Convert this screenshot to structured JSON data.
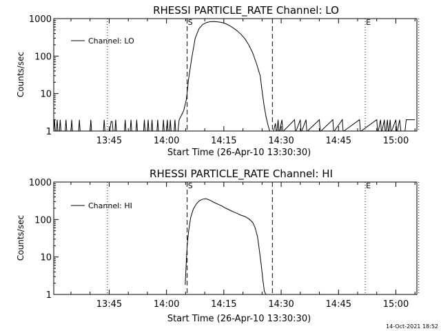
{
  "footer_timestamp": "14-Oct-2021 18:52",
  "chart_data": [
    {
      "type": "line",
      "title": "RHESSI PARTICLE_RATE Channel: LO",
      "xlabel": "Start Time (26-Apr-10 13:30:30)",
      "ylabel": "Counts/sec",
      "yscale": "log",
      "ylim": [
        1,
        1000
      ],
      "y_ticks": [
        1,
        10,
        100,
        1000
      ],
      "y_tick_labels": [
        "1",
        "10",
        "100",
        "1000"
      ],
      "xlim_min": [
        0.5,
        95.5
      ],
      "x_ticks_min": [
        15,
        30,
        45,
        60,
        75,
        90
      ],
      "x_tick_labels": [
        "13:45",
        "14:00",
        "14:15",
        "14:30",
        "14:45",
        "15:00"
      ],
      "legend": "Channel: LO",
      "markers": [
        {
          "label": "S",
          "x_min": 35.4,
          "style": "dashed"
        },
        {
          "label": "",
          "x_min": 57.7,
          "style": "dashed"
        },
        {
          "label": "",
          "x_min": 14.5,
          "style": "dotted"
        },
        {
          "label": "E",
          "x_min": 82.0,
          "style": "dotted"
        },
        {
          "label": "",
          "x_min": 96.0,
          "style": "dotted"
        }
      ],
      "series": [
        {
          "name": "Channel: LO",
          "x_min": [
            0.5,
            0.7,
            0.9,
            1.2,
            1.4,
            1.6,
            2.0,
            2.2,
            2.4,
            3.5,
            3.7,
            3.9,
            5.0,
            5.2,
            5.4,
            7.0,
            7.2,
            7.4,
            10.0,
            10.2,
            10.4,
            13.5,
            13.7,
            13.9,
            15.0,
            15.2,
            15.5,
            15.8,
            16.0,
            16.5,
            16.7,
            16.9,
            19.0,
            19.2,
            19.4,
            20.5,
            20.7,
            20.9,
            22.0,
            22.2,
            22.4,
            24.0,
            24.2,
            24.4,
            25.0,
            25.2,
            25.4,
            26.0,
            26.2,
            26.4,
            27.5,
            27.7,
            27.9,
            29.0,
            29.2,
            29.4,
            30.0,
            30.2,
            30.4,
            30.8,
            31.0,
            31.2,
            32.0,
            32.2,
            32.4,
            33.0,
            33.3,
            33.8,
            34.5,
            35.2,
            35.8,
            36.6,
            37.5,
            38.5,
            39.5,
            40.5,
            41.5,
            42.5,
            43.5,
            44.5,
            45.5,
            46.5,
            47.5,
            48.5,
            49.5,
            50.5,
            51.5,
            52.5,
            53.5,
            54.5,
            55.0,
            55.5,
            56.0,
            56.5,
            57.0,
            57.5,
            58.0,
            58.5,
            58.7,
            58.9,
            59.2,
            59.4,
            59.6,
            60.2,
            60.4,
            60.6,
            63.5,
            63.7,
            63.9,
            65.0,
            65.2,
            65.4,
            66.5,
            66.7,
            66.9,
            70.0,
            70.2,
            70.4,
            73.5,
            73.7,
            73.9,
            76.0,
            76.2,
            76.4,
            80.5,
            80.7,
            80.9,
            85.0,
            85.2,
            85.4,
            86.0,
            86.2,
            86.4,
            87.0,
            87.2,
            87.4,
            87.8,
            88.0,
            88.2,
            88.5,
            88.7,
            88.9,
            90.0,
            90.2,
            90.4,
            91.0,
            91.3,
            92.4,
            92.7,
            95.0
          ],
          "y": [
            1,
            2,
            1,
            1,
            2,
            1,
            1,
            2,
            1,
            1,
            2,
            1,
            1,
            2,
            1,
            1,
            2,
            1,
            1,
            2,
            1,
            1,
            2,
            1,
            1,
            1,
            1.8,
            1.8,
            1,
            1,
            2,
            1,
            1,
            2,
            1,
            1,
            2,
            1,
            1,
            2,
            1,
            1,
            2,
            1,
            1,
            2,
            1,
            1,
            2,
            1,
            1,
            2,
            1,
            1,
            2,
            1,
            1,
            2,
            1,
            1,
            2,
            1,
            1,
            2,
            1,
            1,
            2,
            2.5,
            3.5,
            7,
            25,
            90,
            300,
            540,
            700,
            790,
            830,
            835,
            820,
            790,
            730,
            650,
            560,
            470,
            380,
            290,
            200,
            125,
            65,
            30,
            12,
            5,
            2.5,
            1.5,
            1,
            1,
            1,
            1.6,
            1,
            1,
            2,
            1,
            1,
            2,
            1,
            1,
            2,
            1,
            1,
            2,
            1,
            1,
            2,
            1,
            1,
            2,
            1,
            1,
            2,
            1,
            1,
            2,
            1,
            1,
            2,
            1,
            1,
            2,
            1,
            1,
            2,
            1,
            1,
            2,
            1,
            1,
            2,
            1,
            1,
            2,
            1,
            1,
            2,
            1,
            1,
            2,
            1,
            1,
            2,
            2,
            1,
            1
          ]
        }
      ]
    },
    {
      "type": "line",
      "title": "RHESSI PARTICLE_RATE Channel: HI",
      "xlabel": "Start Time (26-Apr-10 13:30:30)",
      "ylabel": "Counts/sec",
      "yscale": "log",
      "ylim": [
        1,
        1000
      ],
      "y_ticks": [
        1,
        10,
        100,
        1000
      ],
      "y_tick_labels": [
        "1",
        "10",
        "100",
        "1000"
      ],
      "xlim_min": [
        0.5,
        95.5
      ],
      "x_ticks_min": [
        15,
        30,
        45,
        60,
        75,
        90
      ],
      "x_tick_labels": [
        "13:45",
        "14:00",
        "14:15",
        "14:30",
        "14:45",
        "15:00"
      ],
      "legend": "Channel: HI",
      "markers": [
        {
          "label": "S",
          "x_min": 35.4,
          "style": "dashed"
        },
        {
          "label": "",
          "x_min": 57.7,
          "style": "dashed"
        },
        {
          "label": "",
          "x_min": 14.5,
          "style": "dotted"
        },
        {
          "label": "E",
          "x_min": 82.0,
          "style": "dotted"
        },
        {
          "label": "",
          "x_min": 96.0,
          "style": "dotted"
        }
      ],
      "series": [
        {
          "name": "Channel: HI",
          "x_min": [
            34.9,
            35.1,
            35.4,
            35.8,
            36.3,
            37.0,
            37.8,
            38.6,
            39.5,
            40.3,
            41.0,
            41.8,
            42.6,
            43.5,
            44.5,
            45.5,
            46.5,
            47.5,
            48.5,
            49.5,
            50.5,
            51.5,
            52.5,
            53.2,
            53.8,
            54.3,
            54.8,
            55.2,
            55.6,
            56.0
          ],
          "y": [
            1.8,
            5,
            20,
            50,
            110,
            190,
            260,
            320,
            350,
            360,
            340,
            310,
            280,
            255,
            230,
            200,
            180,
            160,
            145,
            130,
            120,
            105,
            85,
            60,
            35,
            15,
            6,
            2.5,
            1.2,
            0.5
          ]
        }
      ]
    }
  ]
}
